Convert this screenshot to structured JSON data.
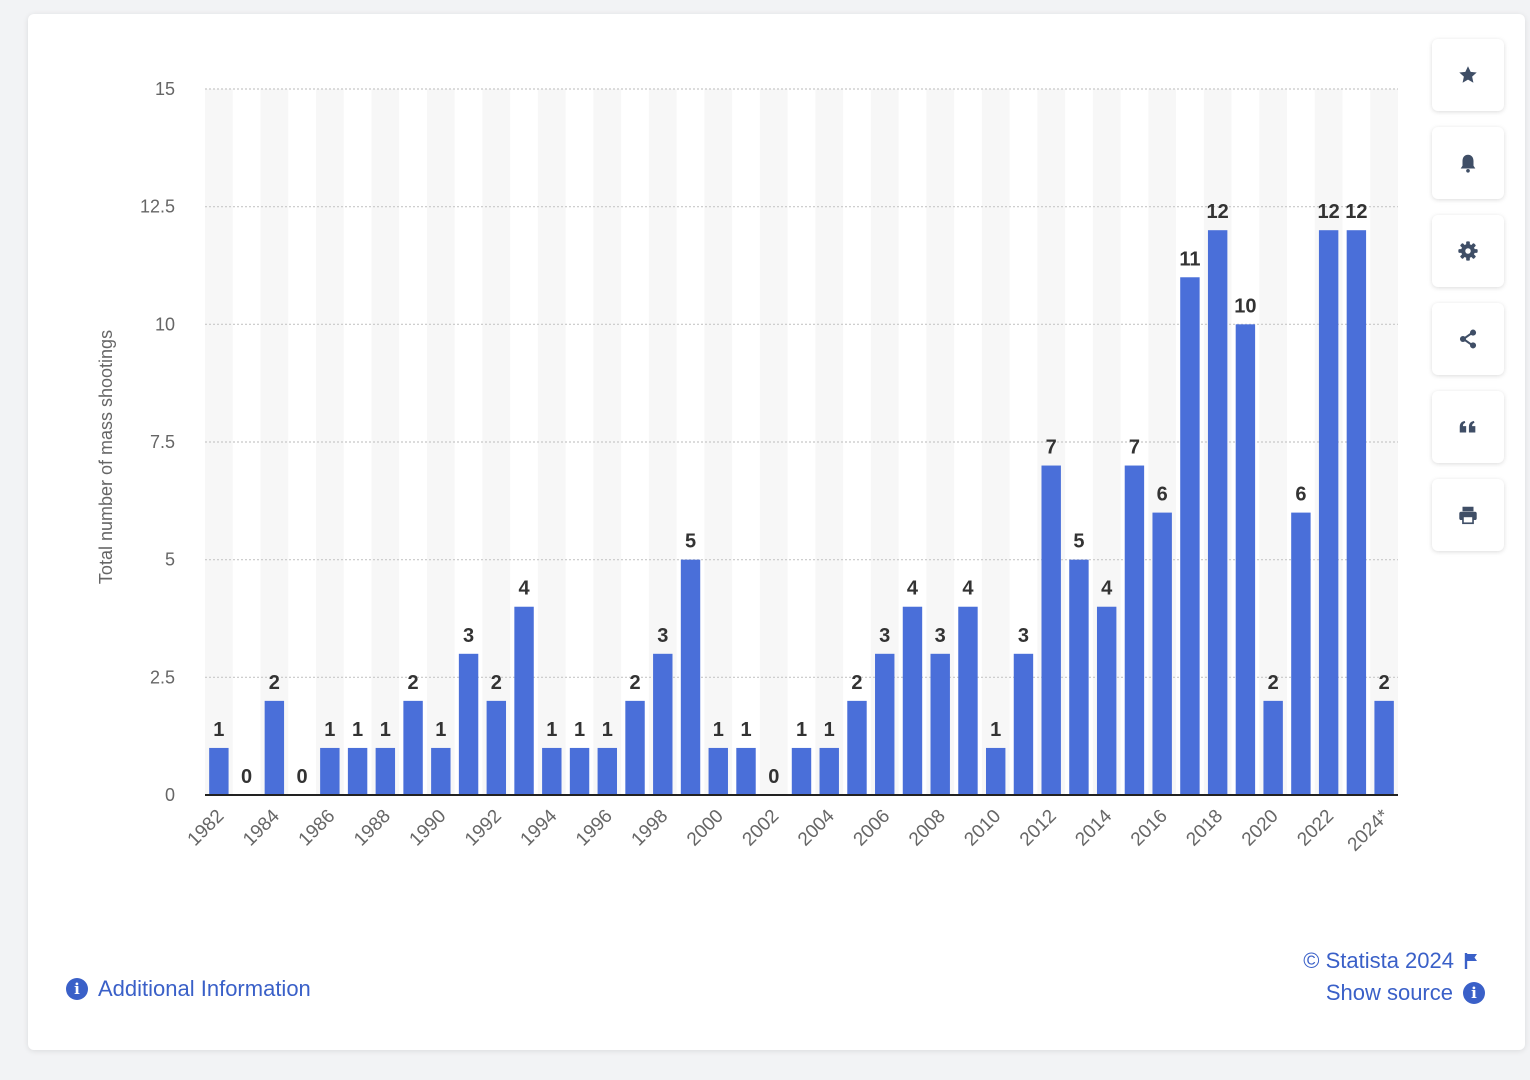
{
  "chart_data": {
    "type": "bar",
    "ylabel": "Total number of mass shootings",
    "xlabel": "",
    "ylim": [
      0,
      15
    ],
    "y_ticks": [
      "0",
      "2.5",
      "5",
      "7.5",
      "10",
      "12.5",
      "15"
    ],
    "y_tick_values": [
      0,
      2.5,
      5,
      7.5,
      10,
      12.5,
      15
    ],
    "categories": [
      "1982",
      "1983",
      "1984",
      "1985",
      "1986",
      "1987",
      "1988",
      "1989",
      "1990",
      "1991",
      "1992",
      "1993",
      "1994",
      "1995",
      "1996",
      "1997",
      "1998",
      "1999",
      "2000",
      "2001",
      "2002",
      "2003",
      "2004",
      "2005",
      "2006",
      "2007",
      "2008",
      "2009",
      "2010",
      "2011",
      "2012",
      "2013",
      "2014",
      "2015",
      "2016",
      "2017",
      "2018",
      "2019",
      "2020",
      "2021",
      "2022",
      "2023",
      "2024*"
    ],
    "values": [
      1,
      0,
      2,
      0,
      1,
      1,
      1,
      2,
      1,
      3,
      2,
      4,
      1,
      1,
      1,
      2,
      3,
      5,
      1,
      1,
      0,
      1,
      1,
      2,
      3,
      4,
      3,
      4,
      1,
      3,
      7,
      5,
      4,
      7,
      6,
      11,
      12,
      10,
      2,
      6,
      12,
      12,
      2
    ],
    "x_tick_labels": [
      "1982",
      "1984",
      "1986",
      "1988",
      "1990",
      "1992",
      "1994",
      "1996",
      "1998",
      "2000",
      "2002",
      "2004",
      "2006",
      "2008",
      "2010",
      "2012",
      "2014",
      "2016",
      "2018",
      "2020",
      "2022",
      "2024*"
    ],
    "grid": true,
    "colors": {
      "bar": "#4a6fd9",
      "label": "#333333",
      "tick": "#666666",
      "grid": "#c8c8c8",
      "band": "#f7f7f7"
    }
  },
  "sidebar": {
    "buttons": [
      {
        "name": "favorite-button",
        "icon": "star-icon"
      },
      {
        "name": "notification-button",
        "icon": "bell-icon"
      },
      {
        "name": "settings-button",
        "icon": "gear-icon"
      },
      {
        "name": "share-button",
        "icon": "share-icon"
      },
      {
        "name": "cite-button",
        "icon": "quote-icon"
      },
      {
        "name": "print-button",
        "icon": "printer-icon"
      }
    ]
  },
  "footer": {
    "additional_info": "Additional Information",
    "copyright": "© Statista 2024",
    "show_source": "Show source"
  },
  "accent": "#3a60c8"
}
